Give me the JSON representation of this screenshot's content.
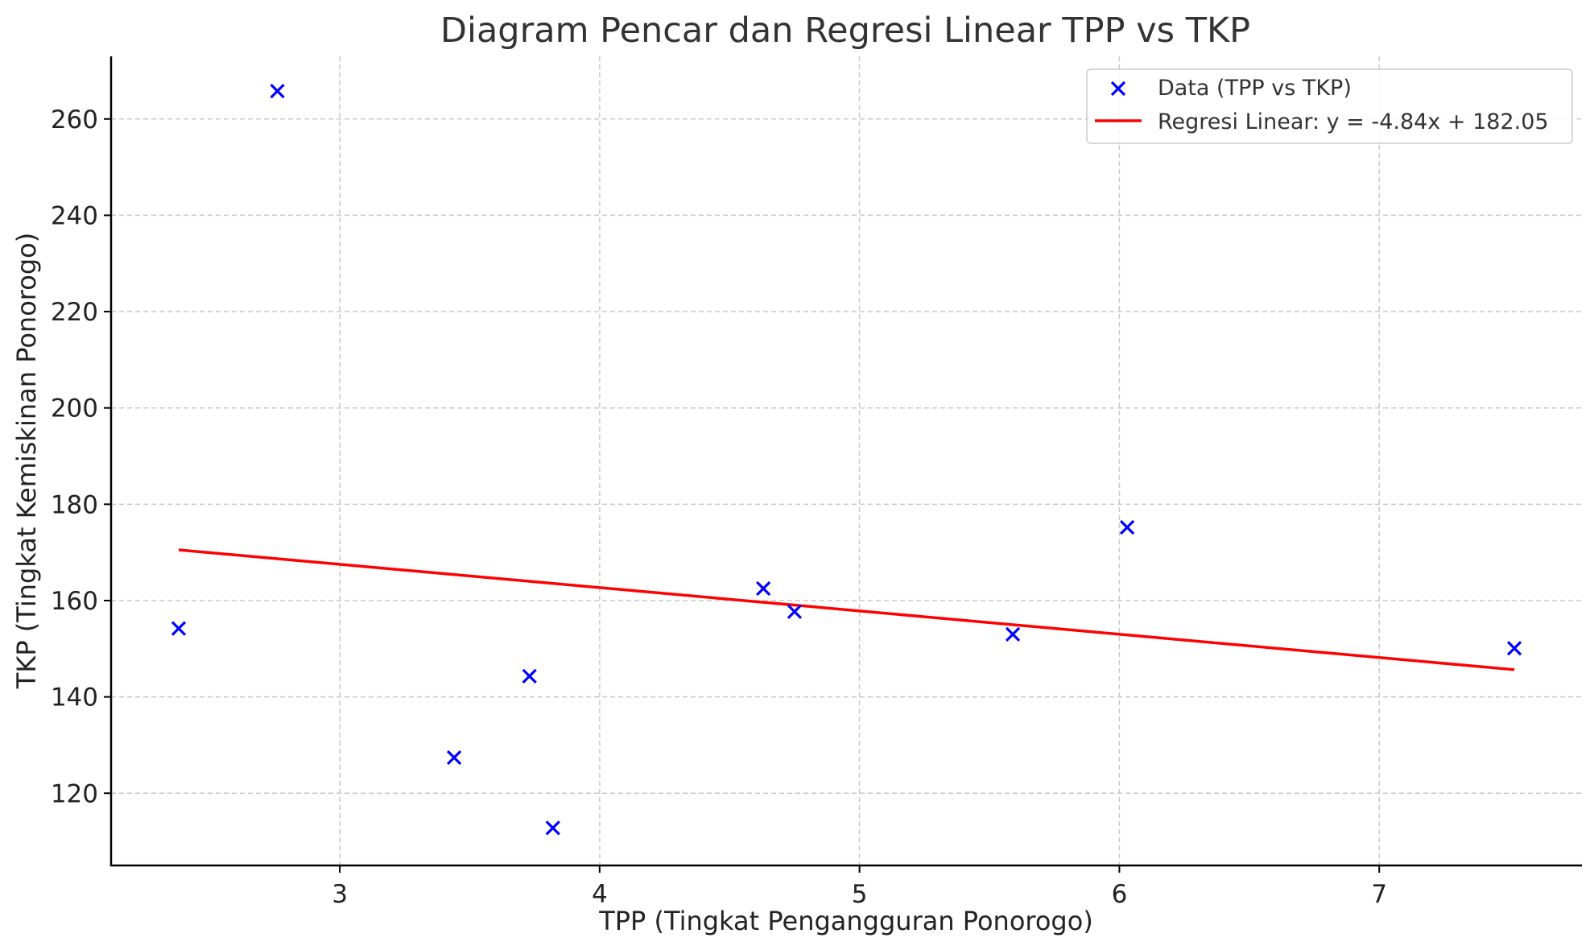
{
  "chart_data": {
    "type": "scatter",
    "title": "Diagram Pencar dan Regresi Linear TPP vs TKP",
    "xlabel": "TPP (Tingkat Pengangguran Ponorogo)",
    "ylabel": "TKP (Tingkat Kemiskinan Ponorogo)",
    "xlim": [
      2.12,
      7.78
    ],
    "ylim": [
      105,
      273
    ],
    "xticks": [
      3,
      4,
      5,
      6,
      7
    ],
    "yticks": [
      120,
      140,
      160,
      180,
      200,
      220,
      240,
      260
    ],
    "grid": true,
    "legend_position": "top-right",
    "colors": {
      "points": "#0000ff",
      "regression": "#ff0000"
    },
    "series": [
      {
        "name": "Data (TPP vs TKP)",
        "kind": "scatter",
        "marker": "x",
        "points": [
          {
            "x": 2.38,
            "y": 154.2
          },
          {
            "x": 2.76,
            "y": 265.8
          },
          {
            "x": 3.44,
            "y": 127.4
          },
          {
            "x": 3.73,
            "y": 144.3
          },
          {
            "x": 3.82,
            "y": 112.8
          },
          {
            "x": 4.63,
            "y": 162.5
          },
          {
            "x": 4.75,
            "y": 157.7
          },
          {
            "x": 5.59,
            "y": 153.0
          },
          {
            "x": 6.03,
            "y": 175.2
          },
          {
            "x": 7.52,
            "y": 150.1
          }
        ]
      },
      {
        "name": "Regresi Linear: y = -4.84x + 182.05",
        "kind": "line",
        "slope": -4.84,
        "intercept": 182.05,
        "x_range": [
          2.38,
          7.52
        ]
      }
    ]
  }
}
